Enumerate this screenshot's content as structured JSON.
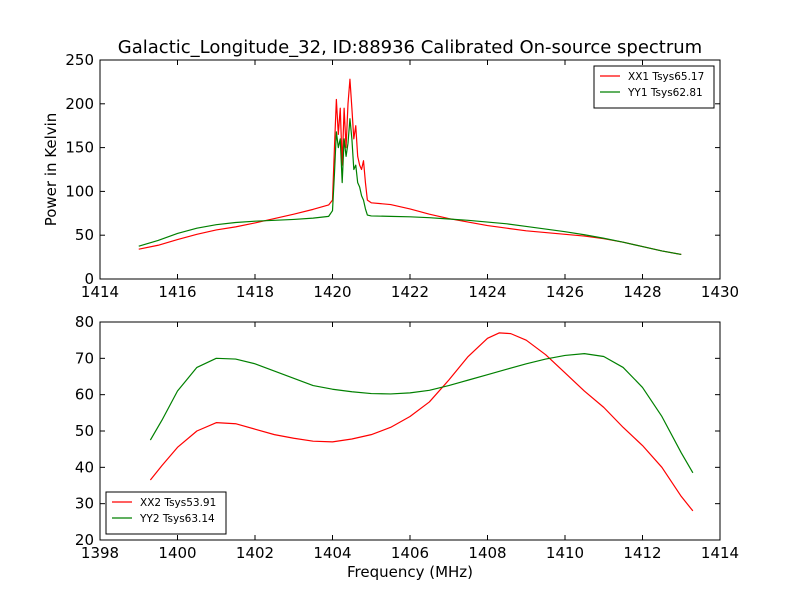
{
  "figure": {
    "title": "Galactic_Longitude_32, ID:88936 Calibrated On-source spectrum"
  },
  "chart_data": [
    {
      "type": "line",
      "title": "Galactic_Longitude_32, ID:88936 Calibrated On-source spectrum",
      "xlabel": "",
      "ylabel": "Power in Kelvin",
      "xlim": [
        1414,
        1430
      ],
      "ylim": [
        0,
        250
      ],
      "xticks": [
        "1414",
        "1416",
        "1418",
        "1420",
        "1422",
        "1424",
        "1426",
        "1428",
        "1430"
      ],
      "yticks": [
        "0",
        "50",
        "100",
        "150",
        "200",
        "250"
      ],
      "grid": false,
      "legend_position": "top-right",
      "series": [
        {
          "name": "XX1 Tsys65.17",
          "color": "#ff0000",
          "points": [
            [
              1415.0,
              34
            ],
            [
              1415.5,
              38.5
            ],
            [
              1416.0,
              45
            ],
            [
              1416.5,
              51
            ],
            [
              1417.0,
              56
            ],
            [
              1417.5,
              59.5
            ],
            [
              1418.0,
              64
            ],
            [
              1418.5,
              69
            ],
            [
              1419.0,
              74
            ],
            [
              1419.5,
              79.5
            ],
            [
              1419.9,
              84.5
            ],
            [
              1420.0,
              90
            ],
            [
              1420.05,
              150
            ],
            [
              1420.1,
              205
            ],
            [
              1420.15,
              165
            ],
            [
              1420.2,
              195
            ],
            [
              1420.25,
              130
            ],
            [
              1420.3,
              195
            ],
            [
              1420.35,
              150
            ],
            [
              1420.4,
              200
            ],
            [
              1420.45,
              228
            ],
            [
              1420.5,
              195
            ],
            [
              1420.55,
              160
            ],
            [
              1420.6,
              175
            ],
            [
              1420.65,
              140
            ],
            [
              1420.7,
              130
            ],
            [
              1420.75,
              125
            ],
            [
              1420.8,
              135
            ],
            [
              1420.85,
              110
            ],
            [
              1420.9,
              90
            ],
            [
              1421.0,
              87
            ],
            [
              1421.5,
              85
            ],
            [
              1422.0,
              80
            ],
            [
              1422.5,
              74
            ],
            [
              1423.0,
              69
            ],
            [
              1423.5,
              65
            ],
            [
              1424.0,
              61
            ],
            [
              1424.5,
              58
            ],
            [
              1425.0,
              55
            ],
            [
              1425.5,
              53
            ],
            [
              1426.0,
              51
            ],
            [
              1426.5,
              49
            ],
            [
              1427.0,
              46
            ],
            [
              1427.5,
              42
            ],
            [
              1428.0,
              37
            ],
            [
              1428.5,
              32
            ],
            [
              1429.0,
              28
            ]
          ]
        },
        {
          "name": "YY1 Tsys62.81",
          "color": "#008000",
          "points": [
            [
              1415.0,
              37.5
            ],
            [
              1415.5,
              44
            ],
            [
              1416.0,
              52
            ],
            [
              1416.5,
              58
            ],
            [
              1417.0,
              62
            ],
            [
              1417.5,
              64.5
            ],
            [
              1418.0,
              66
            ],
            [
              1418.5,
              67
            ],
            [
              1419.0,
              68
            ],
            [
              1419.5,
              69.5
            ],
            [
              1419.9,
              71.5
            ],
            [
              1420.0,
              78
            ],
            [
              1420.05,
              120
            ],
            [
              1420.1,
              168
            ],
            [
              1420.15,
              150
            ],
            [
              1420.2,
              160
            ],
            [
              1420.25,
              110
            ],
            [
              1420.3,
              160
            ],
            [
              1420.35,
              140
            ],
            [
              1420.4,
              155
            ],
            [
              1420.45,
              183
            ],
            [
              1420.5,
              160
            ],
            [
              1420.55,
              125
            ],
            [
              1420.6,
              130
            ],
            [
              1420.65,
              110
            ],
            [
              1420.7,
              105
            ],
            [
              1420.75,
              95
            ],
            [
              1420.8,
              90
            ],
            [
              1420.85,
              80
            ],
            [
              1420.9,
              73
            ],
            [
              1421.0,
              72
            ],
            [
              1421.5,
              71.5
            ],
            [
              1422.0,
              71
            ],
            [
              1422.5,
              70
            ],
            [
              1423.0,
              68.5
            ],
            [
              1423.5,
              67
            ],
            [
              1424.0,
              65
            ],
            [
              1424.5,
              63
            ],
            [
              1425.0,
              60
            ],
            [
              1425.5,
              57
            ],
            [
              1426.0,
              54
            ],
            [
              1426.5,
              50.5
            ],
            [
              1427.0,
              46.5
            ],
            [
              1427.5,
              42
            ],
            [
              1428.0,
              37
            ],
            [
              1428.5,
              32
            ],
            [
              1429.0,
              28
            ]
          ]
        }
      ]
    },
    {
      "type": "line",
      "title": "",
      "xlabel": "Frequency (MHz)",
      "ylabel": "",
      "xlim": [
        1398,
        1414
      ],
      "ylim": [
        20,
        80
      ],
      "xticks": [
        "1398",
        "1400",
        "1402",
        "1404",
        "1406",
        "1408",
        "1410",
        "1412",
        "1414"
      ],
      "yticks": [
        "20",
        "30",
        "40",
        "50",
        "60",
        "70",
        "80"
      ],
      "grid": false,
      "legend_position": "bottom-left",
      "series": [
        {
          "name": "XX2 Tsys53.91",
          "color": "#ff0000",
          "points": [
            [
              1399.3,
              36.5
            ],
            [
              1399.6,
              40.5
            ],
            [
              1400.0,
              45.5
            ],
            [
              1400.5,
              50
            ],
            [
              1401.0,
              52.3
            ],
            [
              1401.5,
              52
            ],
            [
              1402.0,
              50.5
            ],
            [
              1402.5,
              49
            ],
            [
              1403.0,
              48
            ],
            [
              1403.5,
              47.2
            ],
            [
              1404.0,
              47
            ],
            [
              1404.5,
              47.8
            ],
            [
              1405.0,
              49
            ],
            [
              1405.5,
              51
            ],
            [
              1406.0,
              54
            ],
            [
              1406.5,
              58
            ],
            [
              1407.0,
              64
            ],
            [
              1407.5,
              70.5
            ],
            [
              1408.0,
              75.5
            ],
            [
              1408.3,
              77
            ],
            [
              1408.6,
              76.8
            ],
            [
              1409.0,
              75
            ],
            [
              1409.5,
              71
            ],
            [
              1410.0,
              66
            ],
            [
              1410.5,
              61
            ],
            [
              1411.0,
              56.5
            ],
            [
              1411.5,
              51
            ],
            [
              1412.0,
              46
            ],
            [
              1412.5,
              40
            ],
            [
              1413.0,
              32
            ],
            [
              1413.3,
              28
            ]
          ]
        },
        {
          "name": "YY2 Tsys63.14",
          "color": "#008000",
          "points": [
            [
              1399.3,
              47.5
            ],
            [
              1399.6,
              53
            ],
            [
              1400.0,
              61
            ],
            [
              1400.5,
              67.5
            ],
            [
              1401.0,
              70
            ],
            [
              1401.5,
              69.8
            ],
            [
              1402.0,
              68.5
            ],
            [
              1402.5,
              66.5
            ],
            [
              1403.0,
              64.5
            ],
            [
              1403.5,
              62.5
            ],
            [
              1404.0,
              61.5
            ],
            [
              1404.5,
              60.8
            ],
            [
              1405.0,
              60.3
            ],
            [
              1405.5,
              60.2
            ],
            [
              1406.0,
              60.5
            ],
            [
              1406.5,
              61.2
            ],
            [
              1407.0,
              62.5
            ],
            [
              1407.5,
              64
            ],
            [
              1408.0,
              65.5
            ],
            [
              1408.5,
              67
            ],
            [
              1409.0,
              68.5
            ],
            [
              1409.5,
              69.8
            ],
            [
              1410.0,
              70.8
            ],
            [
              1410.5,
              71.3
            ],
            [
              1411.0,
              70.5
            ],
            [
              1411.5,
              67.5
            ],
            [
              1412.0,
              62
            ],
            [
              1412.5,
              54
            ],
            [
              1413.0,
              44
            ],
            [
              1413.3,
              38.5
            ]
          ]
        }
      ]
    }
  ]
}
